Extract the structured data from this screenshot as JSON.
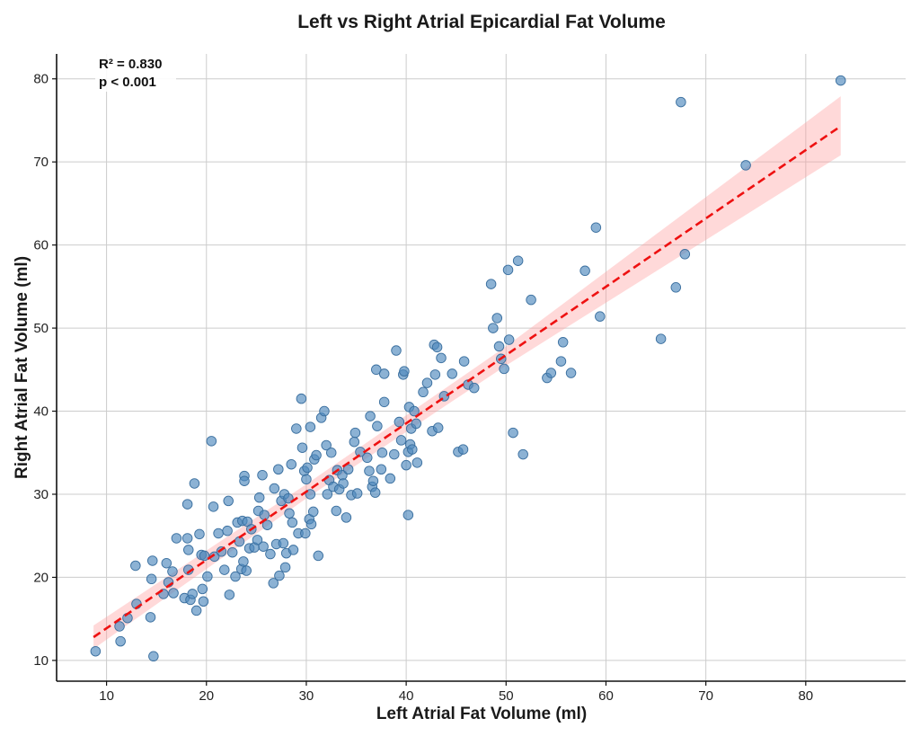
{
  "chart_data": {
    "type": "scatter",
    "title": "Left vs Right Atrial Epicardial Fat Volume",
    "xlabel": "Left Atrial Fat Volume (ml)",
    "ylabel": "Right Atrial Fat Volume (ml)",
    "xlim": [
      5,
      90
    ],
    "ylim": [
      7.5,
      83
    ],
    "xticks": [
      10,
      20,
      30,
      40,
      50,
      60,
      70,
      80
    ],
    "yticks": [
      10,
      20,
      30,
      40,
      50,
      60,
      70,
      80
    ],
    "grid": true,
    "annotation": {
      "r2": "R² = 0.830",
      "p": "p < 0.001"
    },
    "fit": {
      "x_range": [
        8.7,
        83.5
      ],
      "line": [
        [
          8.7,
          12.8
        ],
        [
          83.5,
          74.3
        ]
      ],
      "ci_lower": [
        [
          8.7,
          11.4
        ],
        [
          30,
          29.5
        ],
        [
          50,
          45.5
        ],
        [
          83.5,
          70.8
        ]
      ],
      "ci_upper": [
        [
          8.7,
          14.2
        ],
        [
          30,
          31.2
        ],
        [
          50,
          47.8
        ],
        [
          83.5,
          77.9
        ]
      ]
    },
    "points": [
      [
        8.9,
        11.1
      ],
      [
        11.3,
        14.1
      ],
      [
        11.4,
        12.3
      ],
      [
        12.1,
        15.1
      ],
      [
        12.9,
        21.4
      ],
      [
        13.0,
        16.8
      ],
      [
        14.4,
        15.2
      ],
      [
        14.6,
        22.0
      ],
      [
        14.7,
        10.5
      ],
      [
        14.5,
        19.8
      ],
      [
        15.7,
        18.0
      ],
      [
        16.0,
        21.7
      ],
      [
        16.2,
        19.4
      ],
      [
        16.6,
        20.7
      ],
      [
        16.7,
        18.1
      ],
      [
        17.0,
        24.7
      ],
      [
        17.8,
        17.5
      ],
      [
        18.1,
        28.8
      ],
      [
        18.2,
        23.3
      ],
      [
        18.2,
        20.9
      ],
      [
        18.1,
        24.7
      ],
      [
        18.4,
        17.3
      ],
      [
        18.6,
        18.0
      ],
      [
        18.8,
        31.3
      ],
      [
        19.0,
        16.0
      ],
      [
        19.3,
        25.2
      ],
      [
        19.5,
        22.7
      ],
      [
        19.6,
        18.6
      ],
      [
        19.7,
        17.1
      ],
      [
        19.8,
        22.6
      ],
      [
        20.1,
        20.1
      ],
      [
        20.5,
        36.4
      ],
      [
        20.7,
        28.5
      ],
      [
        20.8,
        22.5
      ],
      [
        21.2,
        25.3
      ],
      [
        21.5,
        23.1
      ],
      [
        21.8,
        20.9
      ],
      [
        22.1,
        25.6
      ],
      [
        22.2,
        29.2
      ],
      [
        22.3,
        17.9
      ],
      [
        22.6,
        23.0
      ],
      [
        22.9,
        20.1
      ],
      [
        23.1,
        26.6
      ],
      [
        23.3,
        24.3
      ],
      [
        23.5,
        21.0
      ],
      [
        23.6,
        26.8
      ],
      [
        23.8,
        32.2
      ],
      [
        23.8,
        31.6
      ],
      [
        23.7,
        21.9
      ],
      [
        24.0,
        20.8
      ],
      [
        24.1,
        26.7
      ],
      [
        24.3,
        23.5
      ],
      [
        24.5,
        25.8
      ],
      [
        24.8,
        23.6
      ],
      [
        25.1,
        24.5
      ],
      [
        25.2,
        28.0
      ],
      [
        25.3,
        29.6
      ],
      [
        25.6,
        32.3
      ],
      [
        25.7,
        23.7
      ],
      [
        25.8,
        27.5
      ],
      [
        26.1,
        26.3
      ],
      [
        26.4,
        22.8
      ],
      [
        26.7,
        19.3
      ],
      [
        26.8,
        30.7
      ],
      [
        27.0,
        24.0
      ],
      [
        27.2,
        33.0
      ],
      [
        27.3,
        20.2
      ],
      [
        27.5,
        29.2
      ],
      [
        27.7,
        24.1
      ],
      [
        27.8,
        30.0
      ],
      [
        27.9,
        21.2
      ],
      [
        28.0,
        22.9
      ],
      [
        28.2,
        29.5
      ],
      [
        28.3,
        27.7
      ],
      [
        28.5,
        33.6
      ],
      [
        28.6,
        26.6
      ],
      [
        28.7,
        23.3
      ],
      [
        29.0,
        37.9
      ],
      [
        29.2,
        25.3
      ],
      [
        29.5,
        41.5
      ],
      [
        29.6,
        35.6
      ],
      [
        29.8,
        32.8
      ],
      [
        29.9,
        25.3
      ],
      [
        30.0,
        31.8
      ],
      [
        30.1,
        33.2
      ],
      [
        30.3,
        27.0
      ],
      [
        30.4,
        38.1
      ],
      [
        30.5,
        26.4
      ],
      [
        30.4,
        30.0
      ],
      [
        30.7,
        27.9
      ],
      [
        30.8,
        34.2
      ],
      [
        31.0,
        34.7
      ],
      [
        31.2,
        22.6
      ],
      [
        31.5,
        39.2
      ],
      [
        31.8,
        40.0
      ],
      [
        32.0,
        35.9
      ],
      [
        32.1,
        30.0
      ],
      [
        32.3,
        31.7
      ],
      [
        32.5,
        35.0
      ],
      [
        32.7,
        30.9
      ],
      [
        33.0,
        28.0
      ],
      [
        33.1,
        32.9
      ],
      [
        33.3,
        30.6
      ],
      [
        33.6,
        32.3
      ],
      [
        33.7,
        31.3
      ],
      [
        34.0,
        27.2
      ],
      [
        34.2,
        33.0
      ],
      [
        34.5,
        29.9
      ],
      [
        34.8,
        36.3
      ],
      [
        34.9,
        37.4
      ],
      [
        35.1,
        30.1
      ],
      [
        35.4,
        35.1
      ],
      [
        36.1,
        34.4
      ],
      [
        36.3,
        32.8
      ],
      [
        36.4,
        39.4
      ],
      [
        36.6,
        30.9
      ],
      [
        36.7,
        31.6
      ],
      [
        36.9,
        30.2
      ],
      [
        37.0,
        45.0
      ],
      [
        37.1,
        38.2
      ],
      [
        37.5,
        33.0
      ],
      [
        37.6,
        35.0
      ],
      [
        37.8,
        44.5
      ],
      [
        37.8,
        41.1
      ],
      [
        38.4,
        31.9
      ],
      [
        38.8,
        34.8
      ],
      [
        39.0,
        47.3
      ],
      [
        39.3,
        38.7
      ],
      [
        39.5,
        36.5
      ],
      [
        39.7,
        44.4
      ],
      [
        39.8,
        44.8
      ],
      [
        40.0,
        33.5
      ],
      [
        40.2,
        35.1
      ],
      [
        40.3,
        40.5
      ],
      [
        40.2,
        27.5
      ],
      [
        40.4,
        36.0
      ],
      [
        40.5,
        37.9
      ],
      [
        40.6,
        35.4
      ],
      [
        40.8,
        40.0
      ],
      [
        41.0,
        38.5
      ],
      [
        41.1,
        33.8
      ],
      [
        41.7,
        42.3
      ],
      [
        42.1,
        43.4
      ],
      [
        42.6,
        37.6
      ],
      [
        42.8,
        48.0
      ],
      [
        42.9,
        44.4
      ],
      [
        43.1,
        47.7
      ],
      [
        43.2,
        38.0
      ],
      [
        43.5,
        46.4
      ],
      [
        43.8,
        41.8
      ],
      [
        44.6,
        44.5
      ],
      [
        45.2,
        35.1
      ],
      [
        45.7,
        35.4
      ],
      [
        45.8,
        46.0
      ],
      [
        46.2,
        43.2
      ],
      [
        46.8,
        42.8
      ],
      [
        48.5,
        55.3
      ],
      [
        48.7,
        50.0
      ],
      [
        49.1,
        51.2
      ],
      [
        49.3,
        47.8
      ],
      [
        49.5,
        46.3
      ],
      [
        49.8,
        45.1
      ],
      [
        50.2,
        57.0
      ],
      [
        50.3,
        48.6
      ],
      [
        50.7,
        37.4
      ],
      [
        51.2,
        58.1
      ],
      [
        51.7,
        34.8
      ],
      [
        52.5,
        53.4
      ],
      [
        54.1,
        44.0
      ],
      [
        54.5,
        44.6
      ],
      [
        55.5,
        46.0
      ],
      [
        55.7,
        48.3
      ],
      [
        56.5,
        44.6
      ],
      [
        57.9,
        56.9
      ],
      [
        59.0,
        62.1
      ],
      [
        59.4,
        51.4
      ],
      [
        65.5,
        48.7
      ],
      [
        67.0,
        54.9
      ],
      [
        67.5,
        77.2
      ],
      [
        67.9,
        58.9
      ],
      [
        74.0,
        69.6
      ],
      [
        83.5,
        79.8
      ]
    ]
  }
}
